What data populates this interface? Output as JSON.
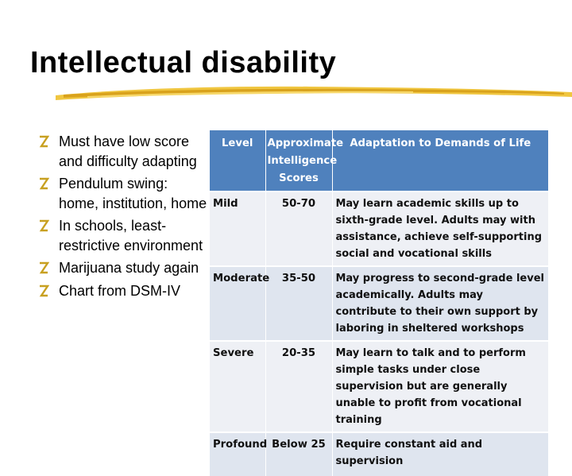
{
  "slide": {
    "title": "Intellectual disability",
    "bullets": [
      "Must have low score and difficulty adapting",
      "Pendulum swing: home, institution, home",
      "In schools, least-restrictive environment",
      "Marijuana study again",
      "Chart from DSM-IV"
    ]
  },
  "table": {
    "headers": [
      "Level",
      "Approximate Intelligence Scores",
      "Adaptation to Demands of Life"
    ],
    "rows": [
      {
        "level": "Mild",
        "score": "50-70",
        "adaptation": "May learn academic skills up to sixth-grade level.   Adults may with assistance, achieve self-supporting social and vocational skills"
      },
      {
        "level": "Moderate",
        "score": "35-50",
        "adaptation": "May progress to second-grade level academically.  Adults may contribute to their own support by laboring in sheltered workshops"
      },
      {
        "level": "Severe",
        "score": "20-35",
        "adaptation": "May learn to talk and to perform simple tasks under close supervision but are generally unable to profit from vocational training"
      },
      {
        "level": "Profound",
        "score": "Below 25",
        "adaptation": "Require constant aid and supervision"
      }
    ]
  },
  "colors": {
    "header_bg": "#4f81bd",
    "underline_gold": "#e8b830",
    "bullet_mark": "#c8a020"
  }
}
